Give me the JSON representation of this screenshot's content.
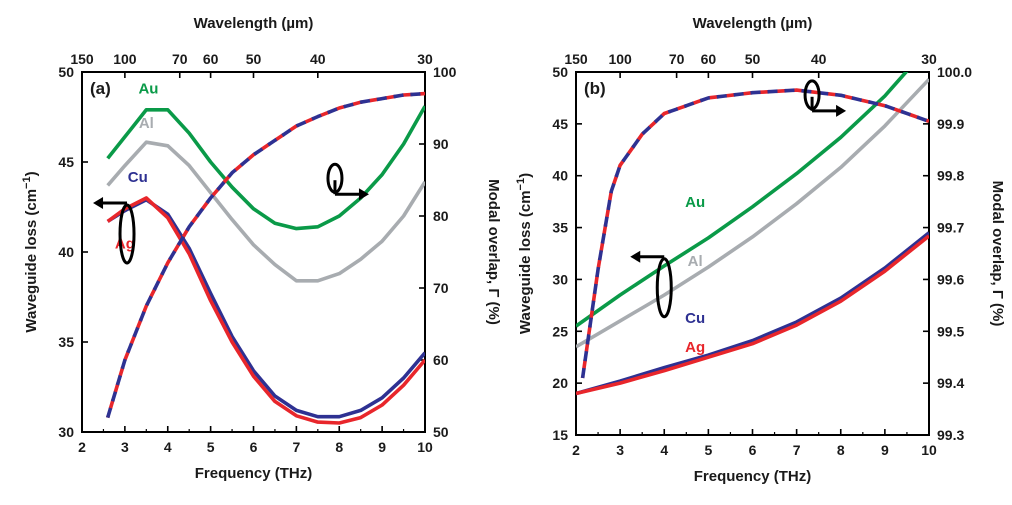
{
  "chart_data": [
    {
      "type": "line",
      "panel_label": "(a)",
      "xlabel": "Frequency (THz)",
      "top_xlabel": "Wavelength (µm)",
      "ylabel": "Waveguide loss (cm",
      "ylabel_sup": "−1",
      "ylabel_close": ")",
      "y2label": "Modal overlap, Γ (%)",
      "xlim": [
        2,
        10
      ],
      "ylim": [
        30,
        50
      ],
      "y2lim": [
        50,
        100
      ],
      "x_ticks": [
        2,
        3,
        4,
        5,
        6,
        7,
        8,
        9,
        10
      ],
      "y_ticks": [
        30,
        35,
        40,
        45,
        50
      ],
      "y2_ticks": [
        50,
        60,
        70,
        80,
        90,
        100
      ],
      "top_ticks": [
        {
          "label": "150",
          "freq": 2.0
        },
        {
          "label": "100",
          "freq": 3.0
        },
        {
          "label": "70",
          "freq": 4.28
        },
        {
          "label": "60",
          "freq": 5.0
        },
        {
          "label": "50",
          "freq": 6.0
        },
        {
          "label": "40",
          "freq": 7.5
        },
        {
          "label": "30",
          "freq": 10.0
        }
      ],
      "series": [
        {
          "name": "Au",
          "axis": "left",
          "style": "solid",
          "color": "#0a9a48",
          "x": [
            2.6,
            3.0,
            3.5,
            4.0,
            4.5,
            5.0,
            5.5,
            6.0,
            6.5,
            7.0,
            7.5,
            8.0,
            8.5,
            9.0,
            9.5,
            10.0
          ],
          "y": [
            45.2,
            46.4,
            47.9,
            47.9,
            46.6,
            45.0,
            43.6,
            42.4,
            41.6,
            41.3,
            41.4,
            42.0,
            43.0,
            44.3,
            46.0,
            48.1
          ]
        },
        {
          "name": "Al",
          "axis": "left",
          "style": "solid",
          "color": "#a8acb0",
          "x": [
            2.6,
            3.0,
            3.5,
            4.0,
            4.5,
            5.0,
            5.5,
            6.0,
            6.5,
            7.0,
            7.5,
            8.0,
            8.5,
            9.0,
            9.5,
            10.0
          ],
          "y": [
            43.7,
            44.8,
            46.1,
            45.9,
            44.8,
            43.3,
            41.8,
            40.4,
            39.3,
            38.4,
            38.4,
            38.8,
            39.6,
            40.6,
            42.0,
            43.9
          ]
        },
        {
          "name": "Cu",
          "axis": "left",
          "style": "solid",
          "color": "#2e3192",
          "x": [
            2.6,
            3.0,
            3.5,
            4.0,
            4.5,
            5.0,
            5.5,
            6.0,
            6.5,
            7.0,
            7.5,
            8.0,
            8.5,
            9.0,
            9.5,
            10.0
          ],
          "y": [
            41.7,
            42.3,
            42.9,
            42.1,
            40.2,
            37.7,
            35.3,
            33.4,
            32.0,
            31.2,
            30.85,
            30.85,
            31.2,
            31.9,
            33.0,
            34.4
          ]
        },
        {
          "name": "Ag",
          "axis": "left",
          "style": "solid",
          "color": "#e8262b",
          "x": [
            2.6,
            3.0,
            3.5,
            4.0,
            4.5,
            5.0,
            5.5,
            6.0,
            6.5,
            7.0,
            7.5,
            8.0,
            8.5,
            9.0,
            9.5,
            10.0
          ],
          "y": [
            41.7,
            42.4,
            43.0,
            41.9,
            39.9,
            37.3,
            35.0,
            33.1,
            31.7,
            30.9,
            30.55,
            30.5,
            30.8,
            31.5,
            32.6,
            34.0
          ]
        },
        {
          "name": "",
          "axis": "right",
          "style": "dashed",
          "color": "#2e3192",
          "x": [
            2.6,
            3.0,
            3.5,
            4.0,
            4.5,
            5.0,
            5.5,
            6.0,
            6.5,
            7.0,
            7.5,
            8.0,
            8.5,
            9.0,
            9.5,
            10.0
          ],
          "y": [
            52.0,
            60.0,
            67.5,
            73.5,
            78.5,
            82.5,
            86.0,
            88.5,
            90.5,
            92.5,
            93.8,
            95.0,
            95.8,
            96.3,
            96.8,
            97.0
          ]
        }
      ],
      "annotations": [
        {
          "text": "Au",
          "x": 3.55,
          "y": 48.8,
          "color": "#0a9a48"
        },
        {
          "text": "Al",
          "x": 3.5,
          "y": 46.9,
          "color": "#a8acb0"
        },
        {
          "text": "Cu",
          "x": 3.3,
          "y": 43.9,
          "color": "#2e3192"
        },
        {
          "text": "Ag",
          "x": 3.0,
          "y": 40.2,
          "color": "#e8262b"
        }
      ],
      "markers": [
        {
          "kind": "left",
          "x": 3.05,
          "y": 41.0,
          "label": "loss-axis-arrow"
        },
        {
          "kind": "right",
          "x": 7.9,
          "y": 44.1,
          "label": "overlap-axis-arrow"
        }
      ]
    },
    {
      "type": "line",
      "panel_label": "(b)",
      "xlabel": "Frequency (THz)",
      "top_xlabel": "Wavelength (µm)",
      "ylabel": "Waveguide loss (cm",
      "ylabel_sup": "−1",
      "ylabel_close": ")",
      "y2label": "Modal overlap, Γ (%)",
      "xlim": [
        2,
        10
      ],
      "ylim": [
        15,
        50
      ],
      "y2lim": [
        99.3,
        100.0
      ],
      "x_ticks": [
        2,
        3,
        4,
        5,
        6,
        7,
        8,
        9,
        10
      ],
      "y_ticks": [
        15,
        20,
        25,
        30,
        35,
        40,
        45,
        50
      ],
      "y2_ticks": [
        99.3,
        99.4,
        99.5,
        99.6,
        99.7,
        99.8,
        99.9,
        100.0
      ],
      "y2_tick_labels": [
        "99.3",
        "99.4",
        "99.5",
        "99.6",
        "99.7",
        "99.8",
        "99.9",
        "100.0"
      ],
      "top_ticks": [
        {
          "label": "150",
          "freq": 2.0
        },
        {
          "label": "100",
          "freq": 3.0
        },
        {
          "label": "70",
          "freq": 4.28
        },
        {
          "label": "60",
          "freq": 5.0
        },
        {
          "label": "50",
          "freq": 6.0
        },
        {
          "label": "40",
          "freq": 7.5
        },
        {
          "label": "30",
          "freq": 10.0
        }
      ],
      "series": [
        {
          "name": "Au",
          "axis": "left",
          "style": "solid",
          "color": "#0a9a48",
          "x": [
            2,
            3,
            4,
            5,
            6,
            7,
            8,
            9,
            10
          ],
          "y": [
            25.5,
            28.5,
            31.3,
            34.0,
            37.0,
            40.2,
            43.7,
            47.7,
            52.5
          ]
        },
        {
          "name": "Al",
          "axis": "left",
          "style": "solid",
          "color": "#a8acb0",
          "x": [
            2,
            3,
            4,
            5,
            6,
            7,
            8,
            9,
            10
          ],
          "y": [
            23.5,
            26.0,
            28.5,
            31.2,
            34.1,
            37.3,
            40.8,
            44.8,
            49.3
          ]
        },
        {
          "name": "Cu",
          "axis": "left",
          "style": "solid",
          "color": "#2e3192",
          "x": [
            2,
            3,
            4,
            5,
            6,
            7,
            8,
            9,
            10
          ],
          "y": [
            19.0,
            20.2,
            21.5,
            22.7,
            24.1,
            25.9,
            28.2,
            31.1,
            34.5
          ]
        },
        {
          "name": "Ag",
          "axis": "left",
          "style": "solid",
          "color": "#e8262b",
          "x": [
            2,
            3,
            4,
            5,
            6,
            7,
            8,
            9,
            10
          ],
          "y": [
            19.0,
            20.0,
            21.2,
            22.5,
            23.8,
            25.6,
            27.9,
            30.8,
            34.2
          ]
        },
        {
          "name": "",
          "axis": "right",
          "style": "dashed",
          "color": "#2e3192",
          "x": [
            2.15,
            2.5,
            2.8,
            3.0,
            3.5,
            4.0,
            5.0,
            6.0,
            7.0,
            8.0,
            9.0,
            10.0
          ],
          "y": [
            99.41,
            99.62,
            99.77,
            99.82,
            99.88,
            99.92,
            99.95,
            99.96,
            99.965,
            99.955,
            99.935,
            99.905
          ]
        }
      ],
      "annotations": [
        {
          "text": "Au",
          "x": 4.7,
          "y": 37.0,
          "color": "#0a9a48"
        },
        {
          "text": "Al",
          "x": 4.7,
          "y": 31.3,
          "color": "#a8acb0"
        },
        {
          "text": "Cu",
          "x": 4.7,
          "y": 25.8,
          "color": "#2e3192"
        },
        {
          "text": "Ag",
          "x": 4.7,
          "y": 23.0,
          "color": "#e8262b"
        }
      ],
      "markers": [
        {
          "kind": "left",
          "x": 4.0,
          "y": 29.2,
          "label": "loss-axis-arrow"
        },
        {
          "kind": "right",
          "x": 7.35,
          "y": 47.8,
          "label": "overlap-axis-arrow"
        }
      ]
    }
  ]
}
